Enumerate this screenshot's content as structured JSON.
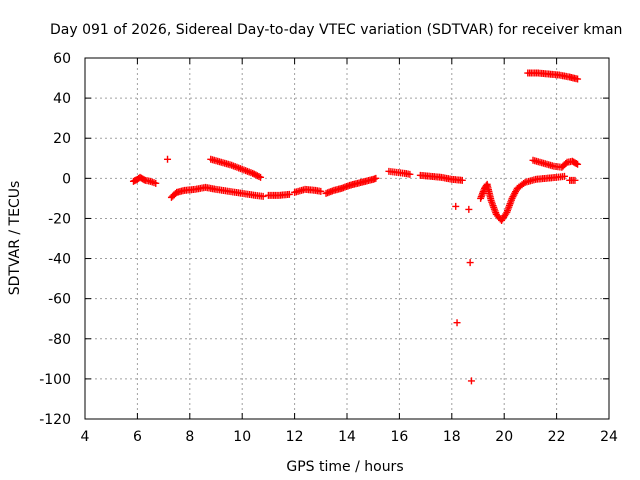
{
  "chart_data": {
    "type": "scatter",
    "title": "Day 091 of 2026, Sidereal Day-to-day VTEC variation (SDTVAR) for receiver kman",
    "xlabel": "GPS time / hours",
    "ylabel": "SDTVAR / TECUs",
    "xlim": [
      4,
      24
    ],
    "ylim": [
      -120,
      60
    ],
    "xticks": [
      4,
      6,
      8,
      10,
      12,
      14,
      16,
      18,
      20,
      22,
      24
    ],
    "yticks": [
      -120,
      -100,
      -80,
      -60,
      -40,
      -20,
      0,
      20,
      40,
      60
    ],
    "grid": true,
    "marker": "+",
    "series": [
      {
        "name": "SDTVAR",
        "color": "#ff0000",
        "segments": [
          [
            [
              5.85,
              -1.5
            ],
            [
              6.0,
              -0.5
            ],
            [
              6.1,
              0.5
            ],
            [
              6.3,
              -1
            ],
            [
              6.5,
              -1.5
            ],
            [
              6.7,
              -2.5
            ]
          ],
          [
            [
              7.15,
              9.5
            ]
          ],
          [
            [
              7.3,
              -9.5
            ],
            [
              7.5,
              -7
            ],
            [
              7.8,
              -6
            ],
            [
              8.2,
              -5.5
            ],
            [
              8.6,
              -4.5
            ],
            [
              9.0,
              -5.5
            ],
            [
              9.5,
              -6.5
            ],
            [
              10.0,
              -7.5
            ],
            [
              10.5,
              -8.5
            ],
            [
              10.8,
              -9
            ]
          ],
          [
            [
              8.8,
              9.5
            ],
            [
              9.2,
              8
            ],
            [
              9.6,
              6.5
            ],
            [
              10.0,
              4.5
            ],
            [
              10.4,
              2.5
            ],
            [
              10.7,
              0.5
            ]
          ],
          [
            [
              11.0,
              -8.5
            ],
            [
              11.4,
              -8.5
            ],
            [
              11.8,
              -8
            ]
          ],
          [
            [
              12.0,
              -7
            ],
            [
              12.4,
              -5.5
            ],
            [
              12.8,
              -6
            ],
            [
              13.0,
              -6.5
            ]
          ],
          [
            [
              13.2,
              -7.5
            ],
            [
              13.5,
              -6
            ],
            [
              13.8,
              -5
            ],
            [
              14.1,
              -3.5
            ],
            [
              14.4,
              -2.5
            ],
            [
              14.7,
              -1.5
            ],
            [
              15.0,
              -0.5
            ],
            [
              15.1,
              0
            ]
          ],
          [
            [
              15.6,
              3.5
            ],
            [
              15.9,
              3
            ],
            [
              16.2,
              2.5
            ],
            [
              16.4,
              2
            ]
          ],
          [
            [
              16.8,
              1.5
            ],
            [
              17.2,
              1
            ],
            [
              17.6,
              0.5
            ],
            [
              18.0,
              -0.5
            ],
            [
              18.4,
              -1
            ]
          ],
          [
            [
              18.15,
              -14
            ]
          ],
          [
            [
              18.2,
              -72
            ]
          ],
          [
            [
              18.65,
              -15.5
            ]
          ],
          [
            [
              18.7,
              -42
            ]
          ],
          [
            [
              18.75,
              -101
            ]
          ],
          [
            [
              19.1,
              -10
            ],
            [
              19.25,
              -5
            ],
            [
              19.35,
              -3
            ],
            [
              19.5,
              -11
            ],
            [
              19.7,
              -18
            ],
            [
              19.9,
              -21
            ],
            [
              20.1,
              -17
            ],
            [
              20.3,
              -10
            ],
            [
              20.5,
              -5
            ],
            [
              20.8,
              -2
            ],
            [
              21.2,
              -0.5
            ],
            [
              21.6,
              0
            ],
            [
              22.0,
              0.5
            ],
            [
              22.3,
              1
            ]
          ],
          [
            [
              20.9,
              52.5
            ],
            [
              21.3,
              52.5
            ],
            [
              21.7,
              52
            ],
            [
              22.1,
              51.5
            ],
            [
              22.5,
              50.5
            ],
            [
              22.8,
              49.5
            ]
          ],
          [
            [
              21.1,
              9
            ],
            [
              21.5,
              7.5
            ],
            [
              21.9,
              6
            ],
            [
              22.2,
              5.5
            ],
            [
              22.4,
              8
            ],
            [
              22.6,
              8.5
            ],
            [
              22.8,
              7
            ]
          ],
          [
            [
              22.5,
              -1
            ],
            [
              22.7,
              -1
            ]
          ]
        ]
      }
    ]
  }
}
